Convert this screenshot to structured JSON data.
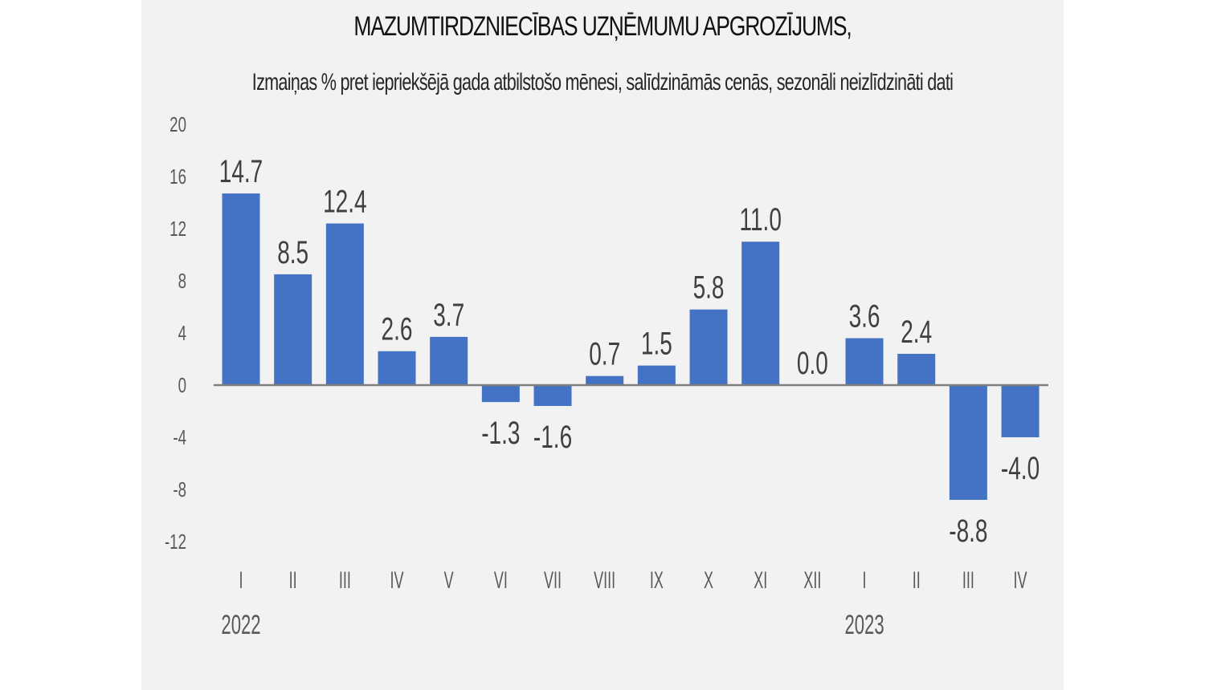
{
  "title": "MAZUMTIRDZNIECĪBAS UZŅĒMUMU APGROZĪJUMS,",
  "subtitle": "Izmaiņas % pret iepriekšējā gada atbilstošo mēnesi, salīdzināmās cenās, sezonāli neizlīdzināti dati",
  "colors": {
    "bar": "#4472c4",
    "axis": "#7f7f7f",
    "background": "#f2f2f2"
  },
  "chart_data": {
    "type": "bar",
    "title": "MAZUMTIRDZNIECĪBAS UZŅĒMUMU APGROZĪJUMS,",
    "subtitle": "Izmaiņas % pret iepriekšējā gada atbilstošo mēnesi, salīdzināmās cenās, sezonāli neizlīdzināti dati",
    "categories": [
      "I",
      "II",
      "III",
      "IV",
      "V",
      "VI",
      "VII",
      "VIII",
      "IX",
      "X",
      "XI",
      "XII",
      "I",
      "II",
      "III",
      "IV"
    ],
    "year_labels": [
      {
        "label": "2022",
        "index": 0
      },
      {
        "label": "2023",
        "index": 12
      }
    ],
    "values": [
      14.7,
      8.5,
      12.4,
      2.6,
      3.7,
      -1.3,
      -1.6,
      0.7,
      1.5,
      5.8,
      11.0,
      0.0,
      3.6,
      2.4,
      -8.8,
      -4.0
    ],
    "data_labels": [
      "14.7",
      "8.5",
      "12.4",
      "2.6",
      "3.7",
      "-1.3",
      "-1.6",
      "0.7",
      "1.5",
      "5.8",
      "11.0",
      "0.0",
      "3.6",
      "2.4",
      "-8.8",
      "-4.0"
    ],
    "xlabel": "",
    "ylabel": "",
    "ylim": [
      -12,
      20
    ],
    "yticks": [
      20,
      16,
      12,
      8,
      4,
      0,
      -4,
      -8,
      -12
    ],
    "grid": false,
    "legend": "none"
  }
}
